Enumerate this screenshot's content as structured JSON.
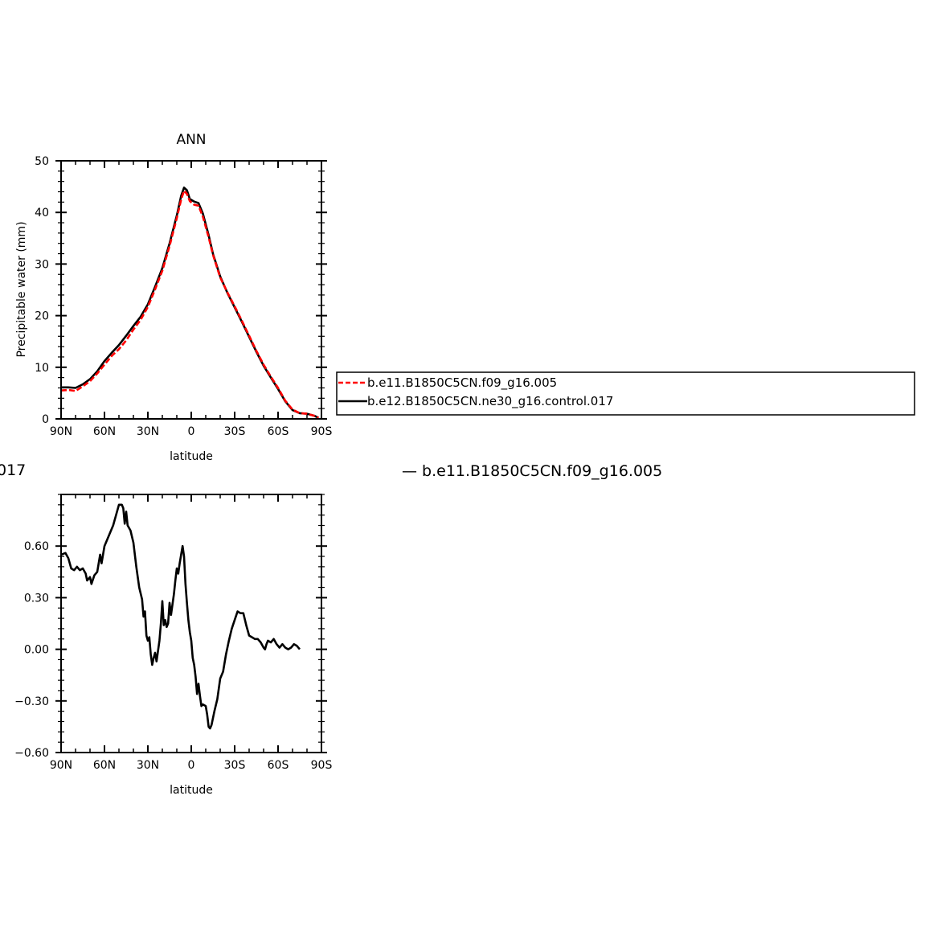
{
  "chart_data": [
    {
      "type": "line",
      "title": "ANN",
      "xlabel": "latitude",
      "ylabel": "Precipitable water (mm)",
      "xlim": [
        90,
        -90
      ],
      "ylim": [
        0,
        50
      ],
      "x_ticks": [
        {
          "value": 90,
          "label": "90N"
        },
        {
          "value": 60,
          "label": "60N"
        },
        {
          "value": 30,
          "label": "30N"
        },
        {
          "value": 0,
          "label": "0"
        },
        {
          "value": -30,
          "label": "30S"
        },
        {
          "value": -60,
          "label": "60S"
        },
        {
          "value": -90,
          "label": "90S"
        }
      ],
      "y_ticks": [
        {
          "value": 0,
          "label": "0"
        },
        {
          "value": 10,
          "label": "10"
        },
        {
          "value": 20,
          "label": "20"
        },
        {
          "value": 30,
          "label": "30"
        },
        {
          "value": 40,
          "label": "40"
        },
        {
          "value": 50,
          "label": "50"
        }
      ],
      "legend": {
        "placement": "right",
        "entries": [
          "b.e11.B1850C5CN.f09_g16.005",
          "b.e12.B1850C5CN.ne30_g16.control.017"
        ]
      },
      "series": [
        {
          "name": "b.e11.B1850C5CN.f09_g16.005",
          "color": "#ff0000",
          "dash": "dashed",
          "points": [
            [
              90,
              5.5
            ],
            [
              85,
              5.6
            ],
            [
              80,
              5.4
            ],
            [
              75,
              6.3
            ],
            [
              70,
              7.3
            ],
            [
              65,
              8.8
            ],
            [
              60,
              10.5
            ],
            [
              55,
              12.2
            ],
            [
              50,
              13.5
            ],
            [
              45,
              15.2
            ],
            [
              40,
              17.3
            ],
            [
              35,
              19.2
            ],
            [
              30,
              21.7
            ],
            [
              25,
              25.1
            ],
            [
              20,
              28.7
            ],
            [
              15,
              33.5
            ],
            [
              10,
              38.9
            ],
            [
              7,
              42.5
            ],
            [
              5,
              44.2
            ],
            [
              3,
              43.6
            ],
            [
              1,
              42.2
            ],
            [
              -2,
              41.5
            ],
            [
              -5,
              41.3
            ],
            [
              -8,
              39.2
            ],
            [
              -12,
              35.2
            ],
            [
              -15,
              31.8
            ],
            [
              -20,
              27.4
            ],
            [
              -25,
              24.5
            ],
            [
              -30,
              21.8
            ],
            [
              -35,
              19.0
            ],
            [
              -40,
              16.1
            ],
            [
              -45,
              13.2
            ],
            [
              -50,
              10.5
            ],
            [
              -55,
              8.2
            ],
            [
              -60,
              6.0
            ],
            [
              -65,
              3.5
            ],
            [
              -70,
              1.8
            ],
            [
              -75,
              1.1
            ],
            [
              -80,
              1.0
            ],
            [
              -85,
              0.6
            ],
            [
              -88,
              0.2
            ]
          ]
        },
        {
          "name": "b.e12.B1850C5CN.ne30_g16.control.017",
          "color": "#000000",
          "dash": "solid",
          "points": [
            [
              90,
              6.1
            ],
            [
              85,
              6.1
            ],
            [
              80,
              6.0
            ],
            [
              75,
              6.7
            ],
            [
              70,
              7.7
            ],
            [
              65,
              9.2
            ],
            [
              60,
              11.2
            ],
            [
              55,
              12.8
            ],
            [
              50,
              14.3
            ],
            [
              45,
              16.1
            ],
            [
              40,
              18.0
            ],
            [
              35,
              19.8
            ],
            [
              30,
              22.2
            ],
            [
              25,
              25.6
            ],
            [
              20,
              29.2
            ],
            [
              15,
              34.0
            ],
            [
              10,
              39.4
            ],
            [
              7,
              43.2
            ],
            [
              5,
              44.8
            ],
            [
              3,
              44.3
            ],
            [
              1,
              42.6
            ],
            [
              -2,
              42.1
            ],
            [
              -5,
              41.8
            ],
            [
              -8,
              39.8
            ],
            [
              -12,
              35.6
            ],
            [
              -15,
              32.0
            ],
            [
              -20,
              27.6
            ],
            [
              -25,
              24.4
            ],
            [
              -30,
              21.6
            ],
            [
              -35,
              18.8
            ],
            [
              -40,
              15.9
            ],
            [
              -45,
              13.0
            ],
            [
              -50,
              10.3
            ],
            [
              -55,
              8.0
            ],
            [
              -60,
              5.8
            ],
            [
              -65,
              3.4
            ],
            [
              -70,
              1.7
            ],
            [
              -75,
              1.1
            ],
            [
              -80,
              1.0
            ],
            [
              -85,
              0.6
            ],
            [
              -88,
              0.2
            ]
          ]
        }
      ]
    },
    {
      "type": "line",
      "title": "",
      "xlabel": "latitude",
      "ylabel": "",
      "xlim": [
        90,
        -90
      ],
      "ylim": [
        -0.6,
        0.9
      ],
      "x_ticks": [
        {
          "value": 90,
          "label": "90N"
        },
        {
          "value": 60,
          "label": "60N"
        },
        {
          "value": 30,
          "label": "30N"
        },
        {
          "value": 0,
          "label": "0"
        },
        {
          "value": -30,
          "label": "30S"
        },
        {
          "value": -60,
          "label": "60S"
        },
        {
          "value": -90,
          "label": "90S"
        }
      ],
      "y_ticks": [
        {
          "value": -0.6,
          "label": "−0.60"
        },
        {
          "value": -0.3,
          "label": "−0.30"
        },
        {
          "value": 0.0,
          "label": "0.00"
        },
        {
          "value": 0.3,
          "label": "0.30"
        },
        {
          "value": 0.6,
          "label": "0.60"
        }
      ],
      "series": [
        {
          "color": "#000000",
          "dash": "solid",
          "points": [
            [
              90,
              0.55
            ],
            [
              87,
              0.56
            ],
            [
              85,
              0.53
            ],
            [
              83,
              0.47
            ],
            [
              81,
              0.46
            ],
            [
              79,
              0.48
            ],
            [
              77,
              0.46
            ],
            [
              75,
              0.47
            ],
            [
              73,
              0.44
            ],
            [
              72,
              0.4
            ],
            [
              70,
              0.42
            ],
            [
              69,
              0.38
            ],
            [
              67,
              0.43
            ],
            [
              65,
              0.45
            ],
            [
              63,
              0.55
            ],
            [
              62,
              0.5
            ],
            [
              60,
              0.6
            ],
            [
              57,
              0.66
            ],
            [
              54,
              0.72
            ],
            [
              52,
              0.78
            ],
            [
              50,
              0.84
            ],
            [
              48,
              0.84
            ],
            [
              47,
              0.82
            ],
            [
              46,
              0.73
            ],
            [
              45,
              0.8
            ],
            [
              44,
              0.72
            ],
            [
              42,
              0.69
            ],
            [
              40,
              0.62
            ],
            [
              38,
              0.48
            ],
            [
              36,
              0.36
            ],
            [
              34,
              0.29
            ],
            [
              33,
              0.19
            ],
            [
              32,
              0.22
            ],
            [
              31,
              0.08
            ],
            [
              30,
              0.05
            ],
            [
              29,
              0.07
            ],
            [
              28,
              -0.03
            ],
            [
              27,
              -0.09
            ],
            [
              26,
              -0.05
            ],
            [
              25,
              -0.02
            ],
            [
              24,
              -0.07
            ],
            [
              22,
              0.05
            ],
            [
              21,
              0.15
            ],
            [
              20,
              0.28
            ],
            [
              19,
              0.14
            ],
            [
              18,
              0.17
            ],
            [
              17,
              0.13
            ],
            [
              16,
              0.15
            ],
            [
              15,
              0.27
            ],
            [
              14,
              0.2
            ],
            [
              13,
              0.26
            ],
            [
              12,
              0.32
            ],
            [
              11,
              0.4
            ],
            [
              10,
              0.47
            ],
            [
              9,
              0.44
            ],
            [
              8,
              0.5
            ],
            [
              7,
              0.55
            ],
            [
              6,
              0.6
            ],
            [
              5,
              0.54
            ],
            [
              4,
              0.38
            ],
            [
              3,
              0.27
            ],
            [
              2,
              0.17
            ],
            [
              1,
              0.1
            ],
            [
              0,
              0.05
            ],
            [
              -1,
              -0.05
            ],
            [
              -2,
              -0.09
            ],
            [
              -3,
              -0.16
            ],
            [
              -4,
              -0.26
            ],
            [
              -5,
              -0.2
            ],
            [
              -6,
              -0.27
            ],
            [
              -7,
              -0.33
            ],
            [
              -8,
              -0.32
            ],
            [
              -10,
              -0.33
            ],
            [
              -11,
              -0.38
            ],
            [
              -12,
              -0.45
            ],
            [
              -13,
              -0.46
            ],
            [
              -14,
              -0.44
            ],
            [
              -16,
              -0.36
            ],
            [
              -18,
              -0.29
            ],
            [
              -20,
              -0.17
            ],
            [
              -22,
              -0.13
            ],
            [
              -24,
              -0.03
            ],
            [
              -26,
              0.05
            ],
            [
              -28,
              0.12
            ],
            [
              -30,
              0.17
            ],
            [
              -32,
              0.22
            ],
            [
              -34,
              0.21
            ],
            [
              -36,
              0.21
            ],
            [
              -38,
              0.14
            ],
            [
              -40,
              0.08
            ],
            [
              -42,
              0.07
            ],
            [
              -44,
              0.06
            ],
            [
              -46,
              0.06
            ],
            [
              -48,
              0.04
            ],
            [
              -50,
              0.01
            ],
            [
              -51,
              0.0
            ],
            [
              -52,
              0.03
            ],
            [
              -53,
              0.05
            ],
            [
              -55,
              0.04
            ],
            [
              -57,
              0.06
            ],
            [
              -59,
              0.03
            ],
            [
              -61,
              0.01
            ],
            [
              -63,
              0.03
            ],
            [
              -65,
              0.01
            ],
            [
              -67,
              0.0
            ],
            [
              -69,
              0.01
            ],
            [
              -71,
              0.03
            ],
            [
              -73,
              0.02
            ],
            [
              -75,
              0.0
            ]
          ]
        }
      ]
    }
  ],
  "overflow_texts": {
    "left_fragment": "017",
    "right_legend": "— b.e11.B1850C5CN.f09_g16.005"
  }
}
